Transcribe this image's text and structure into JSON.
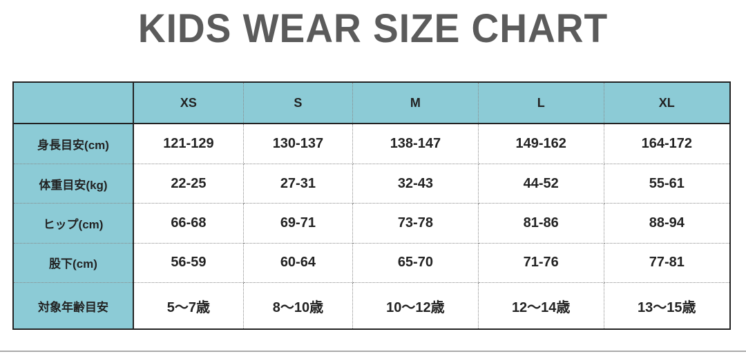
{
  "title": "KIDS WEAR SIZE CHART",
  "accent_color": "#8ccbd6",
  "sizes": [
    "XS",
    "S",
    "M",
    "L",
    "XL"
  ],
  "rows": [
    {
      "label": "身長目安(cm)",
      "values": [
        "121-129",
        "130-137",
        "138-147",
        "149-162",
        "164-172"
      ]
    },
    {
      "label": "体重目安(kg)",
      "values": [
        "22-25",
        "27-31",
        "32-43",
        "44-52",
        "55-61"
      ]
    },
    {
      "label": "ヒップ(cm)",
      "values": [
        "66-68",
        "69-71",
        "73-78",
        "81-86",
        "88-94"
      ]
    },
    {
      "label": "股下(cm)",
      "values": [
        "56-59",
        "60-64",
        "65-70",
        "71-76",
        "77-81"
      ]
    },
    {
      "label": "対象年齢目安",
      "values": [
        "5〜7歳",
        "8〜10歳",
        "10〜12歳",
        "12〜14歳",
        "13〜15歳"
      ]
    }
  ]
}
